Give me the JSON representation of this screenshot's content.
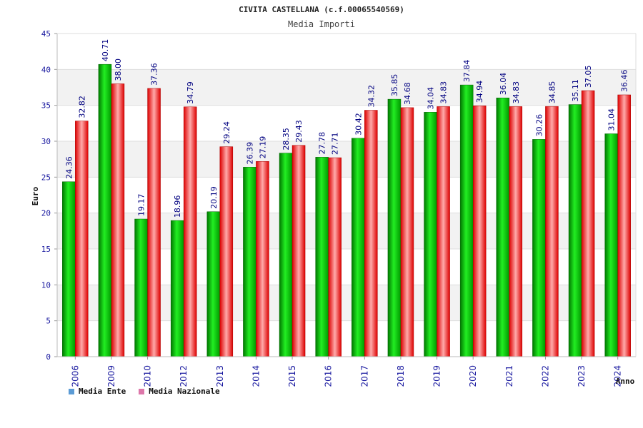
{
  "chart_data": {
    "type": "bar",
    "title": "CIVITA CASTELLANA (c.f.00065540569)",
    "subtitle": "Media Importi",
    "xlabel": "Anno",
    "ylabel": "Euro",
    "ylim": [
      0,
      45
    ],
    "yticks": [
      "0",
      "5",
      "10",
      "15",
      "20",
      "25",
      "30",
      "35",
      "40",
      "45"
    ],
    "grid": true,
    "legend_position": "bottom-left",
    "categories": [
      "2006",
      "2009",
      "2010",
      "2012",
      "2013",
      "2014",
      "2015",
      "2016",
      "2017",
      "2018",
      "2019",
      "2020",
      "2021",
      "2022",
      "2023",
      "2024"
    ],
    "series": [
      {
        "name": "Media Ente",
        "color": "#00bb00",
        "values": [
          24.36,
          40.71,
          19.17,
          18.96,
          20.19,
          26.39,
          28.35,
          27.78,
          30.42,
          35.85,
          34.04,
          37.84,
          36.04,
          30.26,
          35.11,
          31.04
        ],
        "labels": [
          "24.36",
          "40.71",
          "19.17",
          "18.96",
          "20.19",
          "26.39",
          "28.35",
          "27.78",
          "30.42",
          "35.85",
          "34.04",
          "37.84",
          "36.04",
          "30.26",
          "35.11",
          "31.04"
        ]
      },
      {
        "name": "Media Nazionale",
        "color": "#ee2233",
        "values": [
          32.82,
          38.0,
          37.36,
          34.79,
          29.24,
          27.19,
          29.43,
          27.71,
          34.32,
          34.68,
          34.83,
          34.94,
          34.83,
          34.85,
          37.05,
          36.46
        ],
        "labels": [
          "32.82",
          "38.00",
          "37.36",
          "34.79",
          "29.24",
          "27.19",
          "29.43",
          "27.71",
          "34.32",
          "34.68",
          "34.83",
          "34.94",
          "34.83",
          "34.85",
          "37.05",
          "36.46"
        ]
      }
    ],
    "legend_colors": [
      "#5b9bd5",
      "#dd77aa"
    ]
  }
}
